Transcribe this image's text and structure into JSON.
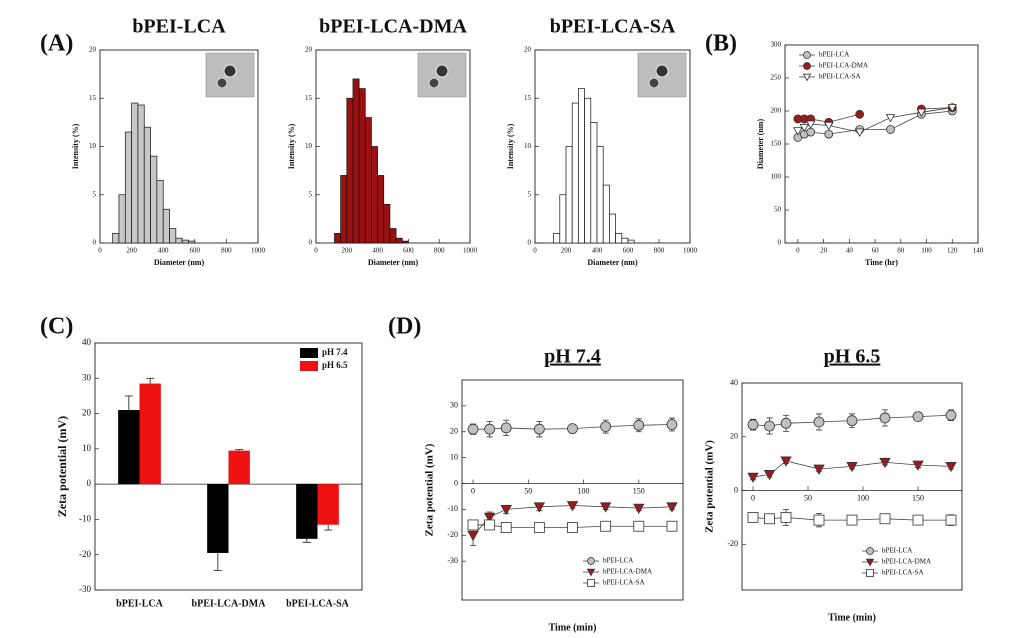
{
  "panel_labels": [
    "(A)",
    "(B)",
    "(C)",
    "(D)"
  ],
  "chart_data": [
    {
      "type": "histogram",
      "title": "bPEI-LCA",
      "xlabel": "Diameter (nm)",
      "ylabel": "Intensity (%)",
      "color": "#c8c8c8",
      "bins": [
        80,
        120,
        160,
        200,
        240,
        280,
        320,
        360,
        400,
        440,
        480,
        520,
        560,
        600
      ],
      "counts": [
        1,
        5,
        11.5,
        14.5,
        14.3,
        12,
        9,
        6.5,
        3.5,
        1.5,
        0.5,
        0.3,
        0.2
      ],
      "xlim": [
        0,
        1000
      ],
      "xticks": [
        0,
        200,
        400,
        600,
        800,
        1000
      ],
      "ylim": [
        0,
        20
      ],
      "yticks": [
        0,
        5,
        10,
        15,
        20
      ]
    },
    {
      "type": "histogram",
      "title": "bPEI-LCA-DMA",
      "xlabel": "Diameter (nm)",
      "ylabel": "Intensity (%)",
      "color": "#9b1010",
      "bins": [
        120,
        160,
        200,
        240,
        280,
        320,
        360,
        400,
        440,
        480,
        520,
        560,
        600
      ],
      "counts": [
        1,
        7,
        15,
        17,
        16,
        13,
        10,
        7,
        4,
        1.5,
        0.5,
        0.2
      ],
      "xlim": [
        0,
        1000
      ],
      "xticks": [
        0,
        200,
        400,
        600,
        800,
        1000
      ],
      "ylim": [
        0,
        20
      ],
      "yticks": [
        0,
        5,
        10,
        15,
        20
      ]
    },
    {
      "type": "histogram",
      "title": "bPEI-LCA-SA",
      "xlabel": "Diameter (nm)",
      "ylabel": "Intensity (%)",
      "color": "#ffffff",
      "bins": [
        120,
        160,
        200,
        240,
        280,
        320,
        360,
        400,
        440,
        480,
        520,
        560,
        600,
        640
      ],
      "counts": [
        1,
        5,
        10,
        14.5,
        16,
        15,
        12.5,
        10,
        6,
        3,
        1,
        0.5,
        0.3
      ],
      "xlim": [
        0,
        1000
      ],
      "xticks": [
        0,
        200,
        400,
        600,
        800,
        1000
      ],
      "ylim": [
        0,
        20
      ],
      "yticks": [
        0,
        5,
        10,
        15,
        20
      ]
    },
    {
      "type": "line",
      "xlabel": "Time (hr)",
      "ylabel": "Diameter (nm)",
      "legend": "upper left",
      "x": [
        0,
        5,
        10,
        24,
        48,
        72,
        96,
        120
      ],
      "series": [
        {
          "name": "bPEI-LCA",
          "color": "#c0c0c0",
          "marker": "circle",
          "values": [
            160,
            165,
            168,
            165,
            172,
            172,
            195,
            200
          ]
        },
        {
          "name": "bPEI-LCA-DMA",
          "color": "#9b1a1a",
          "marker": "circle",
          "values": [
            188,
            188,
            188,
            183,
            195,
            null,
            203,
            205
          ]
        },
        {
          "name": "bPEI-LCA-SA",
          "color": "#ffffff",
          "marker": "triangle",
          "values": [
            170,
            175,
            180,
            178,
            168,
            190,
            198,
            205
          ]
        }
      ],
      "xlim": [
        -10,
        140
      ],
      "xticks": [
        0,
        20,
        40,
        60,
        80,
        100,
        120,
        140
      ],
      "ylim": [
        0,
        300
      ],
      "yticks": [
        0,
        50,
        100,
        150,
        200,
        250,
        300
      ]
    },
    {
      "type": "bar",
      "ylabel": "Zeta potential (mV)",
      "legend": "upper right",
      "categories": [
        "bPEI-LCA",
        "bPEI-LCA-DMA",
        "bPEI-LCA-SA"
      ],
      "series": [
        {
          "name": "pH 7.4",
          "color": "#000000",
          "values": [
            21,
            -19.5,
            -15.5
          ],
          "errors": [
            4,
            5,
            1
          ]
        },
        {
          "name": "pH 6.5",
          "color": "#ee1111",
          "values": [
            28.5,
            9.5,
            -11.5
          ],
          "errors": [
            1.5,
            0.3,
            1.5
          ]
        }
      ],
      "ylim": [
        -30,
        40
      ],
      "yticks": [
        -30,
        -20,
        -10,
        0,
        10,
        20,
        30,
        40
      ]
    },
    {
      "type": "line",
      "title": "pH 7.4",
      "xlabel": "Time (min)",
      "ylabel": "Zeta potential (mV)",
      "legend": "lower right",
      "x": [
        0,
        15,
        30,
        60,
        90,
        120,
        150,
        180
      ],
      "series": [
        {
          "name": "bPEI-LCA",
          "color": "#c0c0c0",
          "marker": "circle",
          "values": [
            21,
            21,
            21.5,
            21,
            21.2,
            22,
            22.5,
            22.8
          ],
          "errors": [
            2,
            3,
            3,
            3,
            1.5,
            2.5,
            2.5,
            2.5
          ]
        },
        {
          "name": "bPEI-LCA-DMA",
          "color": "#9b1a1a",
          "marker": "triangle",
          "values": [
            -20,
            -13,
            -10,
            -9,
            -8.5,
            -9,
            -9.5,
            -9
          ],
          "errors": [
            4,
            2,
            1.5,
            1.5,
            1,
            1,
            1,
            1
          ]
        },
        {
          "name": "bPEI-LCA-SA",
          "color": "#ffffff",
          "marker": "square",
          "values": [
            -16,
            -16,
            -17,
            -17,
            -17,
            -16.5,
            -16.5,
            -16.5
          ],
          "errors": [
            1.5,
            1,
            1,
            1,
            1,
            1,
            1,
            1
          ]
        }
      ],
      "xlim": [
        -10,
        190
      ],
      "xticks": [
        0,
        50,
        100,
        150
      ],
      "ylim": [
        -45,
        40
      ],
      "yticks": [
        -30,
        -20,
        -10,
        0,
        10,
        20,
        30
      ]
    },
    {
      "type": "line",
      "title": "pH 6.5",
      "xlabel": "Time (min)",
      "ylabel": "Zeta potential (mV)",
      "legend": "lower right",
      "x": [
        0,
        15,
        30,
        60,
        90,
        120,
        150,
        180
      ],
      "series": [
        {
          "name": "bPEI-LCA",
          "color": "#c0c0c0",
          "marker": "circle",
          "values": [
            24.5,
            24,
            25,
            25.5,
            26,
            27,
            27.5,
            28
          ],
          "errors": [
            2,
            3,
            3,
            3,
            2.5,
            3,
            1.5,
            2
          ]
        },
        {
          "name": "bPEI-LCA-DMA",
          "color": "#9b1a1a",
          "marker": "triangle",
          "values": [
            5,
            6,
            11,
            8,
            9,
            10.5,
            9.5,
            9
          ],
          "errors": [
            1,
            1,
            1,
            1,
            1,
            1,
            1,
            1
          ]
        },
        {
          "name": "bPEI-LCA-SA",
          "color": "#ffffff",
          "marker": "square",
          "values": [
            -10,
            -10.5,
            -10,
            -11,
            -11,
            -10.5,
            -11,
            -11
          ],
          "errors": [
            1.5,
            1.5,
            3,
            2.5,
            1.5,
            1.5,
            1.5,
            2
          ]
        }
      ],
      "xlim": [
        -10,
        190
      ],
      "xticks": [
        0,
        50,
        100,
        150
      ],
      "ylim": [
        -37,
        40
      ],
      "yticks": [
        -20,
        0,
        20,
        40
      ]
    }
  ]
}
